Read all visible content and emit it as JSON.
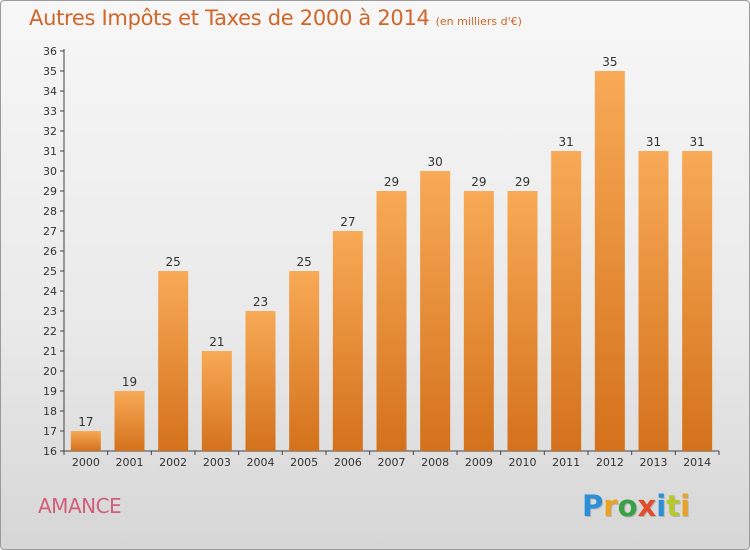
{
  "title": {
    "main": "Autres Impôts et Taxes de 2000 à 2014",
    "unit": "(en milliers d'€)"
  },
  "commune": "AMANCE",
  "logo": {
    "text": "Proxiti",
    "letter_colors": [
      "#2b8fd6",
      "#e8a224",
      "#3aa046",
      "#e04e2b",
      "#2b8fd6",
      "#b5c92c",
      "#e8a224"
    ]
  },
  "colors": {
    "bar_top": "#f8aa56",
    "bar_bottom": "#d4711c",
    "axis": "#444444",
    "grid": "#cccccc",
    "label": "#333333"
  },
  "chart_data": {
    "type": "bar",
    "title": "Autres Impôts et Taxes de 2000 à 2014",
    "xlabel": "",
    "ylabel": "",
    "categories": [
      "2000",
      "2001",
      "2002",
      "2003",
      "2004",
      "2005",
      "2006",
      "2007",
      "2008",
      "2009",
      "2010",
      "2011",
      "2012",
      "2013",
      "2014"
    ],
    "values": [
      17,
      19,
      25,
      21,
      23,
      25,
      27,
      29,
      30,
      29,
      29,
      31,
      35,
      31,
      31
    ],
    "ylim": [
      16,
      36
    ],
    "yticks": [
      16,
      17,
      18,
      19,
      20,
      21,
      22,
      23,
      24,
      25,
      26,
      27,
      28,
      29,
      30,
      31,
      32,
      33,
      34,
      35,
      36
    ],
    "grid": false,
    "data_labels": true
  }
}
